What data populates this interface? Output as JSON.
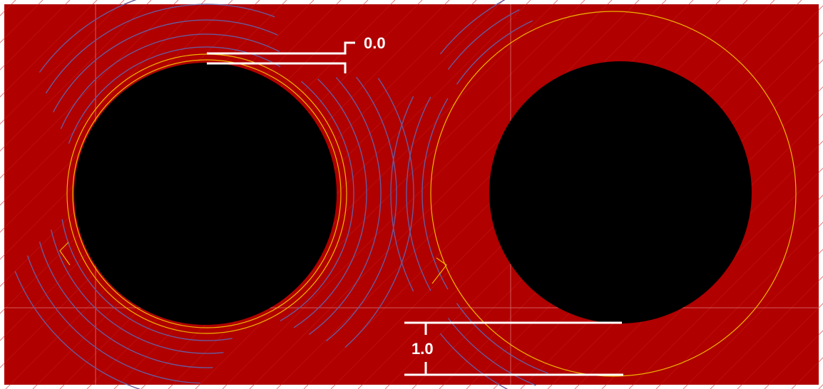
{
  "dimensions": {
    "top_label": "0.0",
    "bottom_label": "1.0"
  },
  "colors": {
    "background": "#b00000",
    "hole": "#000000",
    "outline": "#f0b400",
    "contour": "#6a5a9a",
    "grid": "#e07070",
    "dimension": "#ffffff"
  }
}
